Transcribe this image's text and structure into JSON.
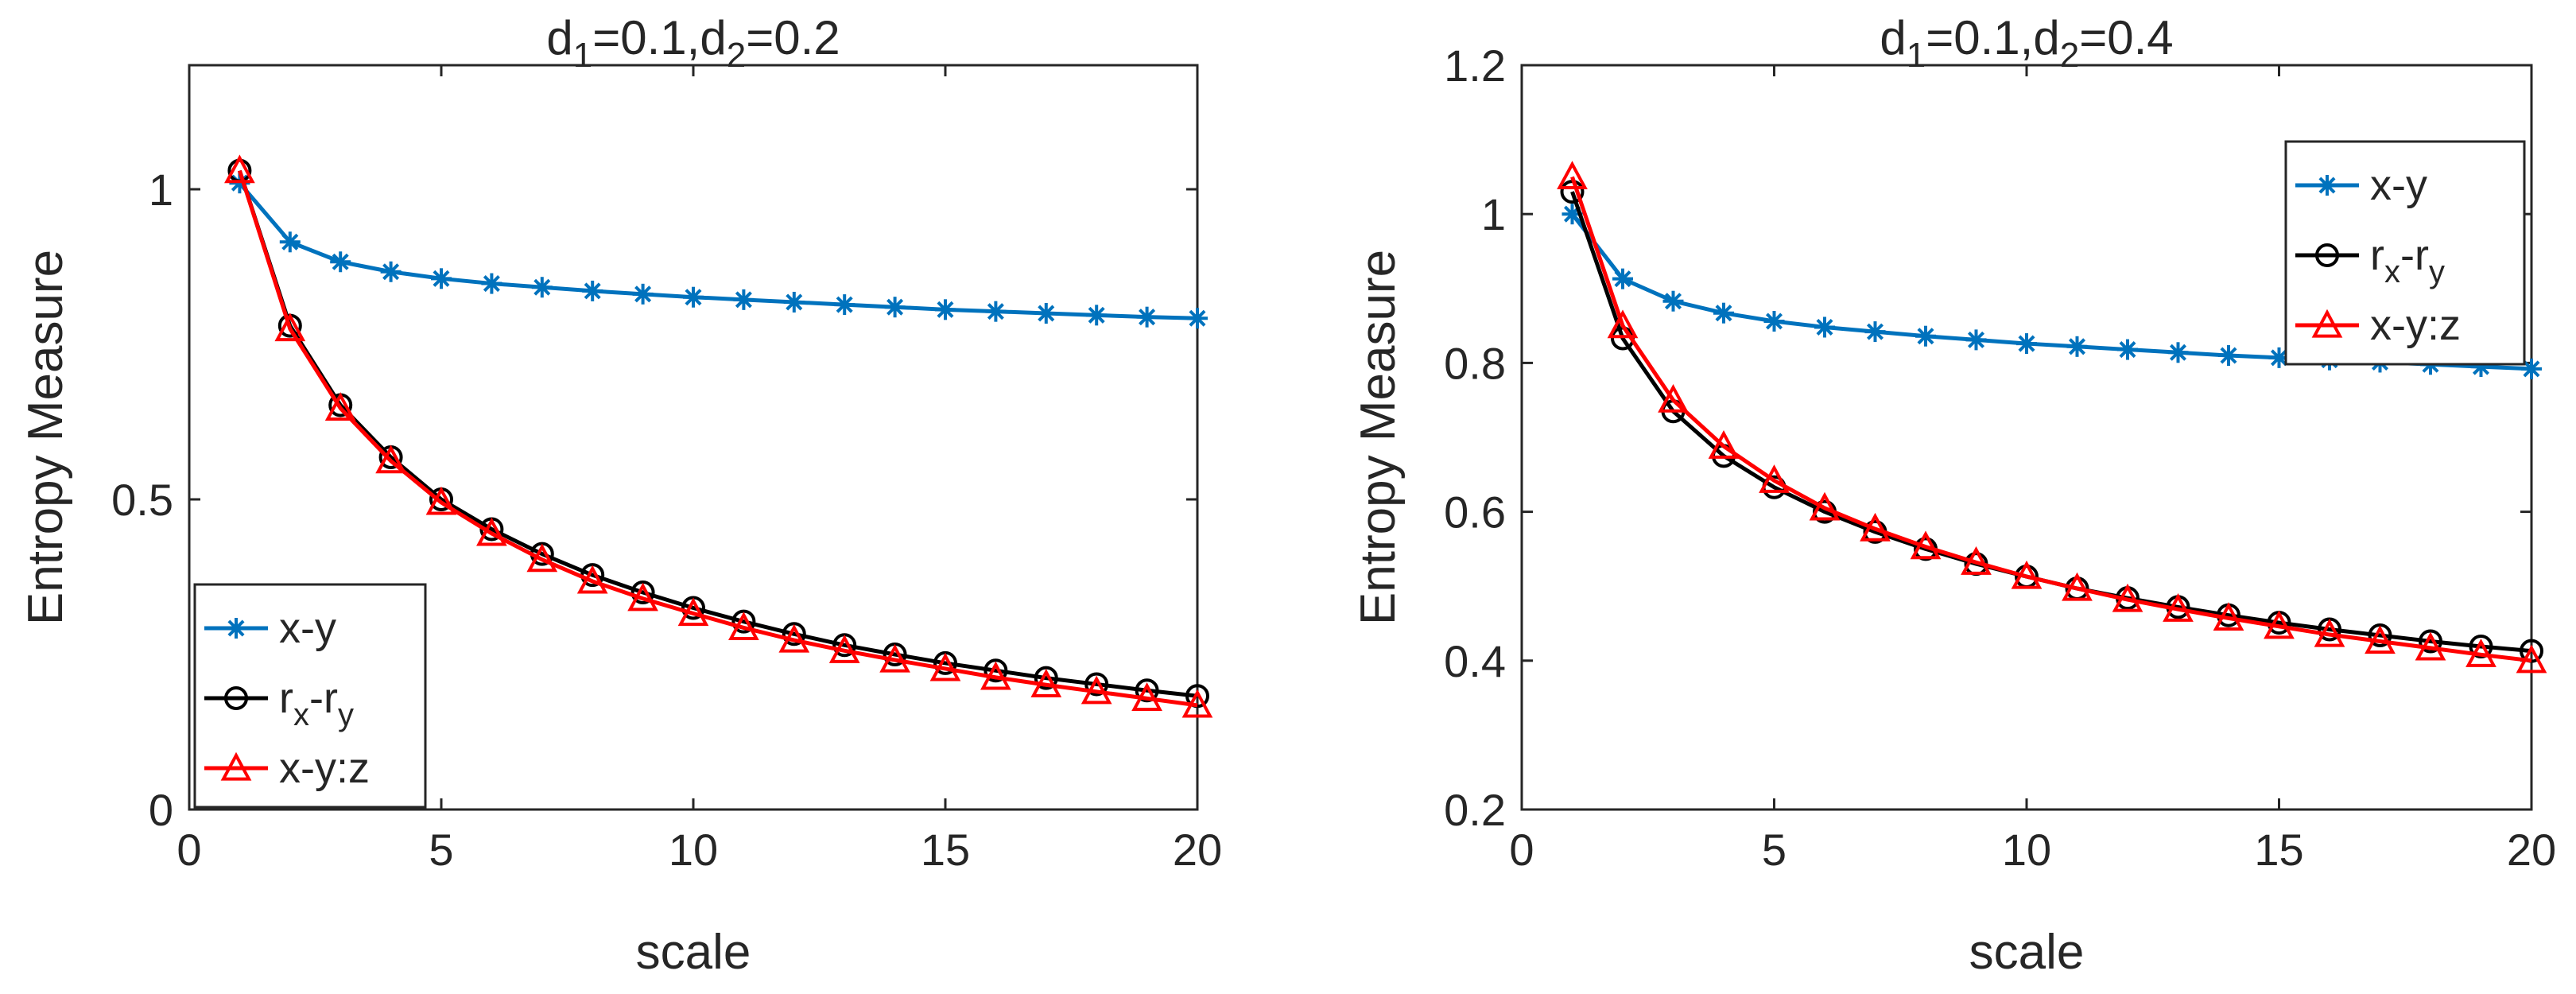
{
  "chart_data": [
    {
      "type": "line",
      "title_parts": {
        "d1": "d",
        "sub1": "1",
        "mid": "=0.1,",
        "d2": "d",
        "sub2": "2",
        "tail": "=0.2"
      },
      "xlabel": "scale",
      "ylabel": "Entropy Measure",
      "xlim": [
        0,
        20
      ],
      "ylim": [
        0,
        1.2
      ],
      "xticks": [
        0,
        5,
        10,
        15,
        20
      ],
      "yticks": [
        0,
        0.5,
        1
      ],
      "xtick_labels": [
        "0",
        "5",
        "10",
        "15",
        "20"
      ],
      "ytick_labels": [
        "0",
        "0.5",
        "1"
      ],
      "legend_position": "bottom-left",
      "x": [
        1,
        2,
        3,
        4,
        5,
        6,
        7,
        8,
        9,
        10,
        11,
        12,
        13,
        14,
        15,
        16,
        17,
        18,
        19,
        20
      ],
      "series": [
        {
          "name": "x-y",
          "label_main": "x-y",
          "color": "#0072BD",
          "marker": "star",
          "values": [
            1.01,
            0.915,
            0.883,
            0.867,
            0.856,
            0.848,
            0.842,
            0.836,
            0.831,
            0.826,
            0.822,
            0.818,
            0.814,
            0.81,
            0.806,
            0.803,
            0.8,
            0.797,
            0.794,
            0.792
          ]
        },
        {
          "name": "rx-ry",
          "label_r1": "r",
          "label_sub1": "x",
          "label_dash": "-r",
          "label_sub2": "y",
          "color": "#000000",
          "marker": "circle",
          "values": [
            1.03,
            0.78,
            0.652,
            0.568,
            0.5,
            0.452,
            0.412,
            0.378,
            0.35,
            0.325,
            0.303,
            0.283,
            0.265,
            0.25,
            0.236,
            0.224,
            0.212,
            0.202,
            0.192,
            0.183
          ]
        },
        {
          "name": "x-y:z",
          "label_main": "x-y:z",
          "color": "#FF0000",
          "marker": "triangle",
          "values": [
            1.03,
            0.775,
            0.647,
            0.562,
            0.495,
            0.445,
            0.403,
            0.368,
            0.34,
            0.316,
            0.293,
            0.273,
            0.256,
            0.241,
            0.227,
            0.213,
            0.201,
            0.19,
            0.179,
            0.168
          ]
        }
      ]
    },
    {
      "type": "line",
      "title_parts": {
        "d1": "d",
        "sub1": "1",
        "mid": "=0.1,",
        "d2": "d",
        "sub2": "2",
        "tail": "=0.4"
      },
      "xlabel": "scale",
      "ylabel": "Entropy Measure",
      "xlim": [
        0,
        20
      ],
      "ylim": [
        0.2,
        1.2
      ],
      "xticks": [
        0,
        5,
        10,
        15,
        20
      ],
      "yticks": [
        0.2,
        0.4,
        0.6,
        0.8,
        1,
        1.2
      ],
      "xtick_labels": [
        "0",
        "5",
        "10",
        "15",
        "20"
      ],
      "ytick_labels": [
        "0.2",
        "0.4",
        "0.6",
        "0.8",
        "1",
        "1.2"
      ],
      "legend_position": "top-right",
      "x": [
        1,
        2,
        3,
        4,
        5,
        6,
        7,
        8,
        9,
        10,
        11,
        12,
        13,
        14,
        15,
        16,
        17,
        18,
        19,
        20
      ],
      "series": [
        {
          "name": "x-y",
          "label_main": "x-y",
          "color": "#0072BD",
          "marker": "star",
          "values": [
            1.0,
            0.913,
            0.883,
            0.867,
            0.856,
            0.848,
            0.842,
            0.836,
            0.831,
            0.826,
            0.822,
            0.818,
            0.814,
            0.81,
            0.807,
            0.804,
            0.801,
            0.798,
            0.795,
            0.792
          ]
        },
        {
          "name": "rx-ry",
          "label_r1": "r",
          "label_sub1": "x",
          "label_dash": "-r",
          "label_sub2": "y",
          "color": "#000000",
          "marker": "circle",
          "values": [
            1.03,
            0.833,
            0.735,
            0.675,
            0.633,
            0.6,
            0.573,
            0.55,
            0.53,
            0.513,
            0.497,
            0.484,
            0.472,
            0.461,
            0.451,
            0.442,
            0.434,
            0.426,
            0.419,
            0.413
          ]
        },
        {
          "name": "x-y:z",
          "label_main": "x-y:z",
          "color": "#FF0000",
          "marker": "triangle",
          "values": [
            1.05,
            0.85,
            0.75,
            0.688,
            0.642,
            0.605,
            0.577,
            0.553,
            0.532,
            0.513,
            0.497,
            0.482,
            0.469,
            0.457,
            0.446,
            0.435,
            0.426,
            0.417,
            0.408,
            0.4
          ]
        }
      ]
    }
  ]
}
